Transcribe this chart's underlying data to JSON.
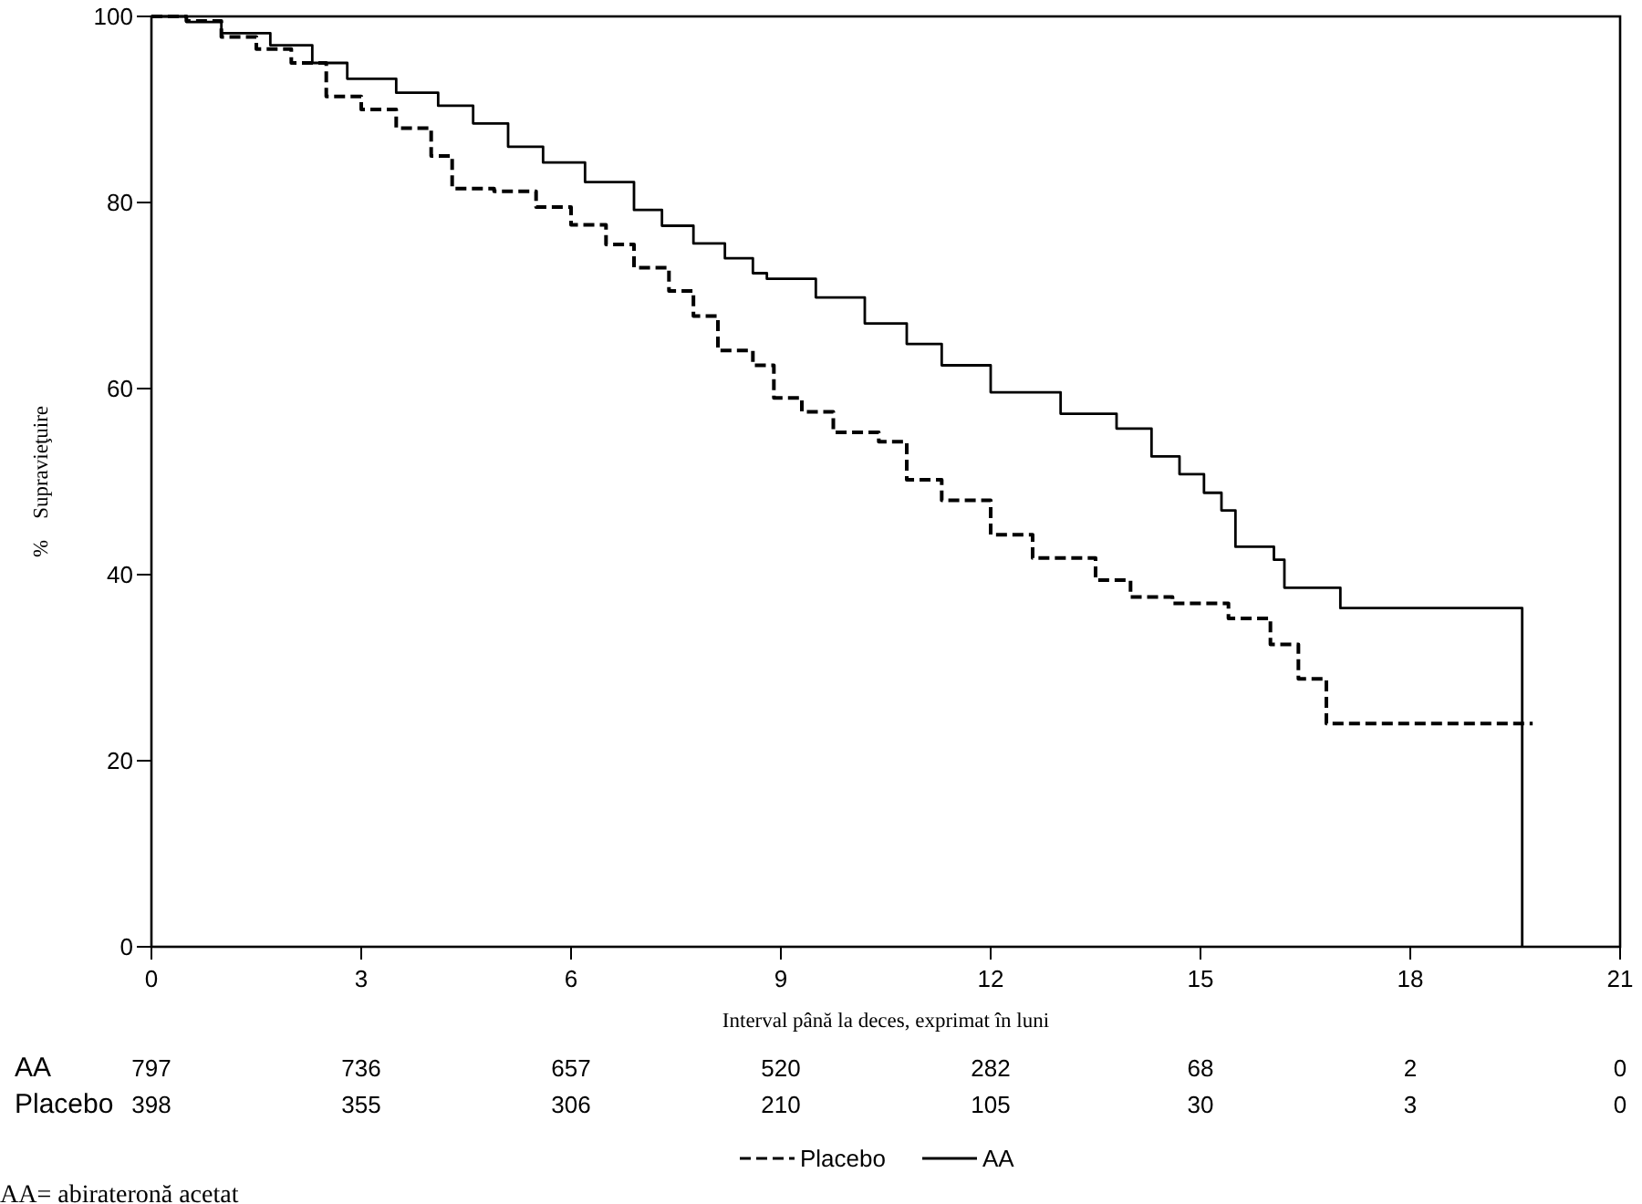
{
  "chart_data": {
    "type": "step",
    "xlabel": "Interval până la deces, exprimat în luni",
    "ylabel": "%    Supravieţuire",
    "xlim": [
      0,
      21
    ],
    "xticks": [
      0,
      3,
      6,
      9,
      12,
      15,
      18,
      21
    ],
    "ylim": [
      0,
      100
    ],
    "yticks": [
      0,
      20,
      40,
      60,
      80,
      100
    ],
    "grid": false,
    "legend": "bottom",
    "marker": "none",
    "series": [
      {
        "name": "Placebo",
        "color": "#000000",
        "line_style": "dashed",
        "x": [
          0,
          0.5,
          1,
          1.5,
          2,
          2.5,
          3,
          3.5,
          4,
          4.3,
          4.9,
          5.5,
          6,
          6.5,
          6.9,
          7.4,
          7.75,
          8.1,
          8.6,
          8.9,
          9.3,
          9.75,
          10.4,
          10.8,
          11.3,
          12,
          12.6,
          13.5,
          14,
          14.6,
          15.4,
          16,
          16.4,
          16.8,
          19.75
        ],
        "values": [
          100,
          99.5,
          97.8,
          96.5,
          95,
          91.4,
          90,
          88,
          85,
          81.5,
          81.2,
          79.5,
          77.6,
          75.5,
          73,
          70.5,
          67.8,
          64.1,
          62.5,
          59,
          57.5,
          55.3,
          54.3,
          50.2,
          48,
          44.3,
          41.8,
          39.4,
          37.6,
          36.9,
          35.3,
          32.5,
          28.8,
          24,
          24
        ]
      },
      {
        "name": "AA",
        "color": "#000000",
        "line_style": "solid",
        "x": [
          0,
          0.5,
          1,
          1.7,
          2.3,
          2.8,
          3.5,
          4.1,
          4.6,
          5.1,
          5.6,
          6.2,
          6.9,
          7.3,
          7.75,
          8.2,
          8.6,
          8.8,
          9.5,
          10.2,
          10.8,
          11.3,
          12,
          13,
          13.8,
          14.3,
          14.7,
          15.05,
          15.3,
          15.5,
          16.05,
          16.2,
          17,
          19.6,
          19.6
        ],
        "values": [
          100,
          99.4,
          98.2,
          96.9,
          95,
          93.3,
          91.8,
          90.4,
          88.5,
          86,
          84.3,
          82.2,
          79.2,
          77.5,
          75.6,
          74,
          72.4,
          71.8,
          69.8,
          67,
          64.8,
          62.5,
          59.6,
          57.3,
          55.7,
          52.7,
          50.8,
          48.8,
          46.9,
          43,
          41.6,
          38.6,
          36.4,
          36.4,
          0
        ]
      }
    ],
    "annotations": [
      "AA 797 736 657 520 282 68 2 0",
      "Placebo 398 355 306 210 105 30 3 0",
      "AA= abirateronă acetat"
    ]
  }
}
